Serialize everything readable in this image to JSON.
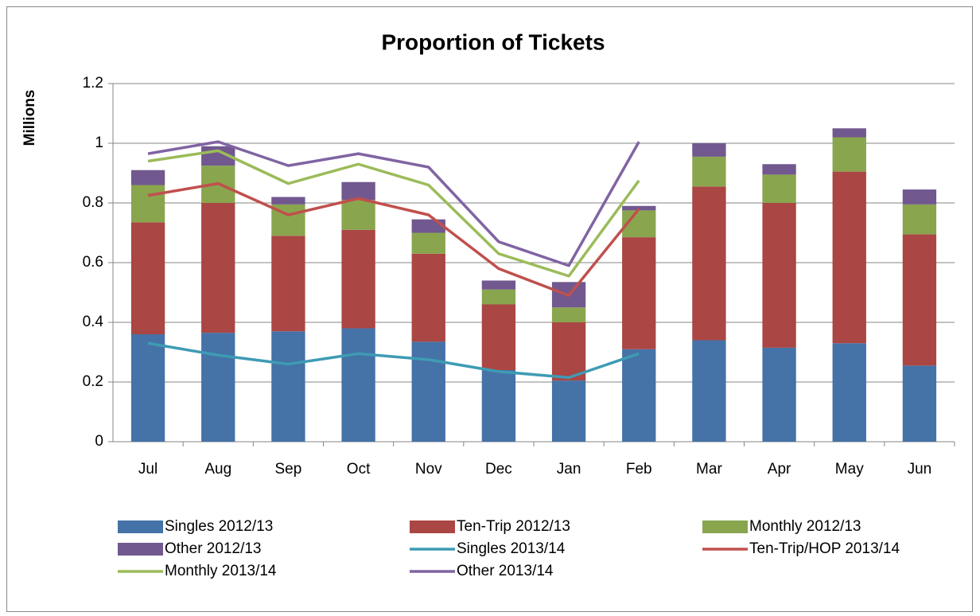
{
  "chart_data": {
    "type": "bar",
    "title": "Proportion of Tickets",
    "y_label": "Millions",
    "categories": [
      "Jul",
      "Aug",
      "Sep",
      "Oct",
      "Nov",
      "Dec",
      "Jan",
      "Feb",
      "Mar",
      "Apr",
      "May",
      "Jun"
    ],
    "ylim": [
      0,
      1.2
    ],
    "yticks": [
      0,
      0.2,
      0.4,
      0.6,
      0.8,
      1,
      1.2
    ],
    "grid": true,
    "stacked": true,
    "legend": "bottom",
    "series": [
      {
        "name": "Singles 2012/13",
        "type": "bar",
        "color": "#4572a7",
        "values": [
          0.36,
          0.365,
          0.37,
          0.38,
          0.335,
          0.24,
          0.205,
          0.31,
          0.34,
          0.315,
          0.33,
          0.255
        ]
      },
      {
        "name": "Ten-Trip 2012/13",
        "type": "bar",
        "color": "#aa4643",
        "values": [
          0.375,
          0.435,
          0.32,
          0.33,
          0.295,
          0.22,
          0.195,
          0.375,
          0.515,
          0.485,
          0.575,
          0.44
        ]
      },
      {
        "name": "Monthly 2012/13",
        "type": "bar",
        "color": "#89a54e",
        "values": [
          0.125,
          0.125,
          0.105,
          0.1,
          0.07,
          0.05,
          0.05,
          0.09,
          0.1,
          0.095,
          0.115,
          0.1
        ]
      },
      {
        "name": "Other 2012/13",
        "type": "bar",
        "color": "#71588f",
        "values": [
          0.05,
          0.065,
          0.025,
          0.06,
          0.045,
          0.03,
          0.085,
          0.015,
          0.045,
          0.035,
          0.03,
          0.05
        ]
      },
      {
        "name": "Singles 2013/14",
        "type": "line",
        "color": "#3e9bb4",
        "values": [
          0.33,
          0.29,
          0.26,
          0.295,
          0.275,
          0.235,
          0.215,
          0.295,
          null,
          null,
          null,
          null
        ]
      },
      {
        "name": "Ten-Trip/HOP 2013/14",
        "type": "line",
        "color": "#c0504d",
        "values": [
          0.825,
          0.865,
          0.76,
          0.815,
          0.76,
          0.58,
          0.49,
          0.78,
          null,
          null,
          null,
          null
        ]
      },
      {
        "name": "Monthly 2013/14",
        "type": "line",
        "color": "#9bbb59",
        "values": [
          0.94,
          0.975,
          0.865,
          0.93,
          0.86,
          0.63,
          0.555,
          0.875,
          null,
          null,
          null,
          null
        ]
      },
      {
        "name": "Other 2013/14",
        "type": "line",
        "color": "#8064a2",
        "values": [
          0.965,
          1.005,
          0.925,
          0.965,
          0.92,
          0.67,
          0.59,
          1.005,
          null,
          null,
          null,
          null
        ]
      }
    ]
  }
}
